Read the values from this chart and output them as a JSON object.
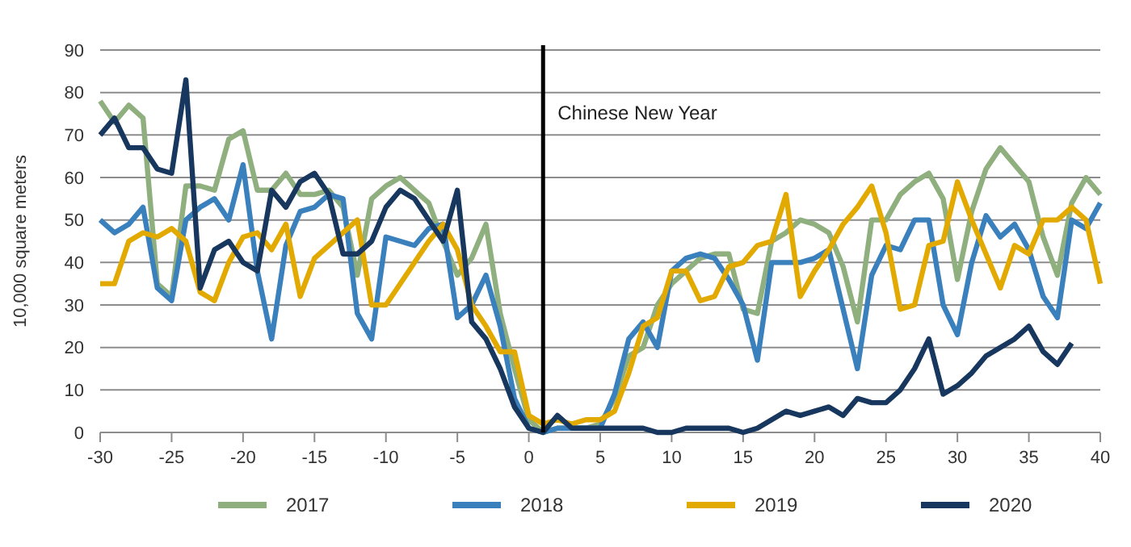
{
  "chart_data": {
    "type": "line",
    "ylabel": "10,000 square meters",
    "x": [
      -30,
      -29,
      -28,
      -27,
      -26,
      -25,
      -24,
      -23,
      -22,
      -21,
      -20,
      -19,
      -18,
      -17,
      -16,
      -15,
      -14,
      -13,
      -12,
      -11,
      -10,
      -9,
      -8,
      -7,
      -6,
      -5,
      -4,
      -3,
      -2,
      -1,
      0,
      1,
      2,
      3,
      4,
      5,
      6,
      7,
      8,
      9,
      10,
      11,
      12,
      13,
      14,
      15,
      16,
      17,
      18,
      19,
      20,
      21,
      22,
      23,
      24,
      25,
      26,
      27,
      28,
      29,
      30,
      31,
      32,
      33,
      34,
      35,
      36,
      37,
      38,
      39,
      40
    ],
    "series": [
      {
        "name": "2017",
        "color": "#8faf7e",
        "values": [
          78,
          73,
          77,
          74,
          35,
          32,
          58,
          58,
          57,
          69,
          71,
          57,
          57,
          61,
          56,
          56,
          57,
          53,
          37,
          55,
          58,
          60,
          57,
          54,
          45,
          37,
          41,
          49,
          28,
          15,
          3,
          0,
          1,
          1,
          1,
          2,
          8,
          18,
          20,
          30,
          35,
          38,
          41,
          42,
          42,
          29,
          28,
          45,
          47,
          50,
          49,
          47,
          39,
          26,
          50,
          50,
          56,
          59,
          61,
          55,
          36,
          52,
          62,
          67,
          63,
          59,
          46,
          37,
          54,
          60,
          56
        ]
      },
      {
        "name": "2018",
        "color": "#3a80bd",
        "values": [
          50,
          47,
          49,
          53,
          34,
          31,
          50,
          53,
          55,
          50,
          63,
          38,
          22,
          44,
          52,
          53,
          56,
          55,
          28,
          22,
          46,
          45,
          44,
          48,
          49,
          27,
          30,
          37,
          25,
          8,
          1,
          0,
          1,
          1,
          1,
          1,
          9,
          22,
          26,
          20,
          38,
          41,
          42,
          41,
          36,
          30,
          17,
          40,
          40,
          40,
          41,
          43,
          29,
          15,
          37,
          44,
          43,
          50,
          50,
          30,
          23,
          40,
          51,
          46,
          49,
          43,
          32,
          27,
          50,
          48,
          54
        ]
      },
      {
        "name": "2019",
        "color": "#e2aa00",
        "values": [
          35,
          35,
          45,
          47,
          46,
          48,
          45,
          33,
          31,
          40,
          46,
          47,
          43,
          49,
          32,
          41,
          44,
          47,
          50,
          30,
          30,
          35,
          40,
          45,
          49,
          43,
          30,
          25,
          19,
          19,
          4,
          2,
          3,
          2,
          3,
          3,
          5,
          14,
          25,
          27,
          38,
          38,
          31,
          32,
          39,
          40,
          44,
          45,
          56,
          32,
          38,
          43,
          49,
          53,
          58,
          47,
          29,
          30,
          44,
          45,
          59,
          50,
          42,
          34,
          44,
          42,
          50,
          50,
          53,
          50,
          35
        ]
      },
      {
        "name": "2020",
        "color": "#17375e",
        "x": [
          -30,
          -29,
          -28,
          -27,
          -26,
          -25,
          -24,
          -23,
          -22,
          -21,
          -20,
          -19,
          -18,
          -17,
          -16,
          -15,
          -14,
          -13,
          -12,
          -11,
          -10,
          -9,
          -8,
          -7,
          -6,
          -5,
          -4,
          -3,
          -2,
          -1,
          0,
          1,
          2,
          3,
          4,
          5,
          6,
          7,
          8,
          9,
          10,
          11,
          12,
          13,
          14,
          15,
          16,
          17,
          18,
          19,
          20,
          21,
          22,
          23,
          24,
          25,
          26,
          27,
          28,
          29,
          30,
          31,
          32,
          33,
          34,
          35,
          36,
          37,
          38
        ],
        "values": [
          70,
          74,
          67,
          67,
          62,
          61,
          83,
          34,
          43,
          45,
          40,
          38,
          57,
          53,
          59,
          61,
          56,
          42,
          42,
          45,
          53,
          57,
          55,
          50,
          45,
          57,
          26,
          22,
          15,
          6,
          1,
          0,
          4,
          1,
          1,
          1,
          1,
          1,
          1,
          0,
          0,
          1,
          1,
          1,
          1,
          0,
          1,
          3,
          5,
          4,
          5,
          6,
          4,
          8,
          7,
          7,
          10,
          15,
          22,
          9,
          11,
          14,
          18,
          20,
          22,
          25,
          19,
          16,
          21
        ]
      }
    ],
    "xlim": [
      -30,
      40
    ],
    "xticks": [
      -30,
      -25,
      -20,
      -15,
      -10,
      -5,
      0,
      5,
      10,
      15,
      20,
      25,
      30,
      35,
      40
    ],
    "ylim": [
      0,
      90
    ],
    "yticks": [
      0,
      10,
      20,
      30,
      40,
      50,
      60,
      70,
      80,
      90
    ],
    "ref_lines": [
      {
        "axis": "x",
        "value": 1,
        "label": "Chinese New Year",
        "color": "#000000"
      }
    ],
    "grid": "y",
    "legend": "bottom",
    "marker": "none",
    "line_style": "solid"
  }
}
